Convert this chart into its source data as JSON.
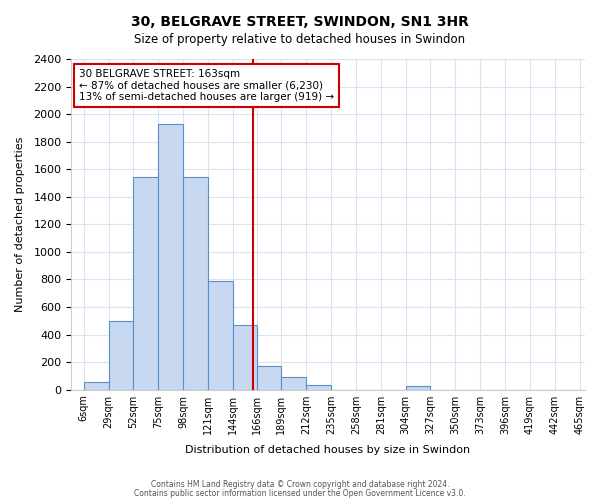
{
  "title": "30, BELGRAVE STREET, SWINDON, SN1 3HR",
  "subtitle": "Size of property relative to detached houses in Swindon",
  "xlabel": "Distribution of detached houses by size in Swindon",
  "ylabel": "Number of detached properties",
  "bin_edges": [
    6,
    29,
    52,
    75,
    98,
    121,
    144,
    166,
    189,
    212,
    235,
    258,
    281,
    304,
    327,
    350,
    373,
    396,
    419,
    442,
    465
  ],
  "bin_labels": [
    "6sqm",
    "29sqm",
    "52sqm",
    "75sqm",
    "98sqm",
    "121sqm",
    "144sqm",
    "166sqm",
    "189sqm",
    "212sqm",
    "235sqm",
    "258sqm",
    "281sqm",
    "304sqm",
    "327sqm",
    "350sqm",
    "373sqm",
    "396sqm",
    "419sqm",
    "442sqm",
    "465sqm"
  ],
  "bar_values": [
    55,
    500,
    1540,
    1930,
    1540,
    790,
    470,
    175,
    95,
    35,
    0,
    0,
    0,
    25,
    0,
    0,
    0,
    0,
    0,
    0
  ],
  "bar_color": "#c8d8f0",
  "bar_edge_color": "#5b8fc9",
  "reference_line_label": "30 BELGRAVE STREET: 163sqm",
  "annotation_line1": "← 87% of detached houses are smaller (6,230)",
  "annotation_line2": "13% of semi-detached houses are larger (919) →",
  "annotation_box_color": "#ffffff",
  "annotation_box_edge_color": "#cc0000",
  "ylim": [
    0,
    2400
  ],
  "yticks": [
    0,
    200,
    400,
    600,
    800,
    1000,
    1200,
    1400,
    1600,
    1800,
    2000,
    2200,
    2400
  ],
  "red_line_color": "#cc0000",
  "ref_line_x": 163,
  "footer1": "Contains HM Land Registry data © Crown copyright and database right 2024.",
  "footer2": "Contains public sector information licensed under the Open Government Licence v3.0.",
  "bg_color": "#ffffff",
  "grid_color": "#d8e4f0"
}
